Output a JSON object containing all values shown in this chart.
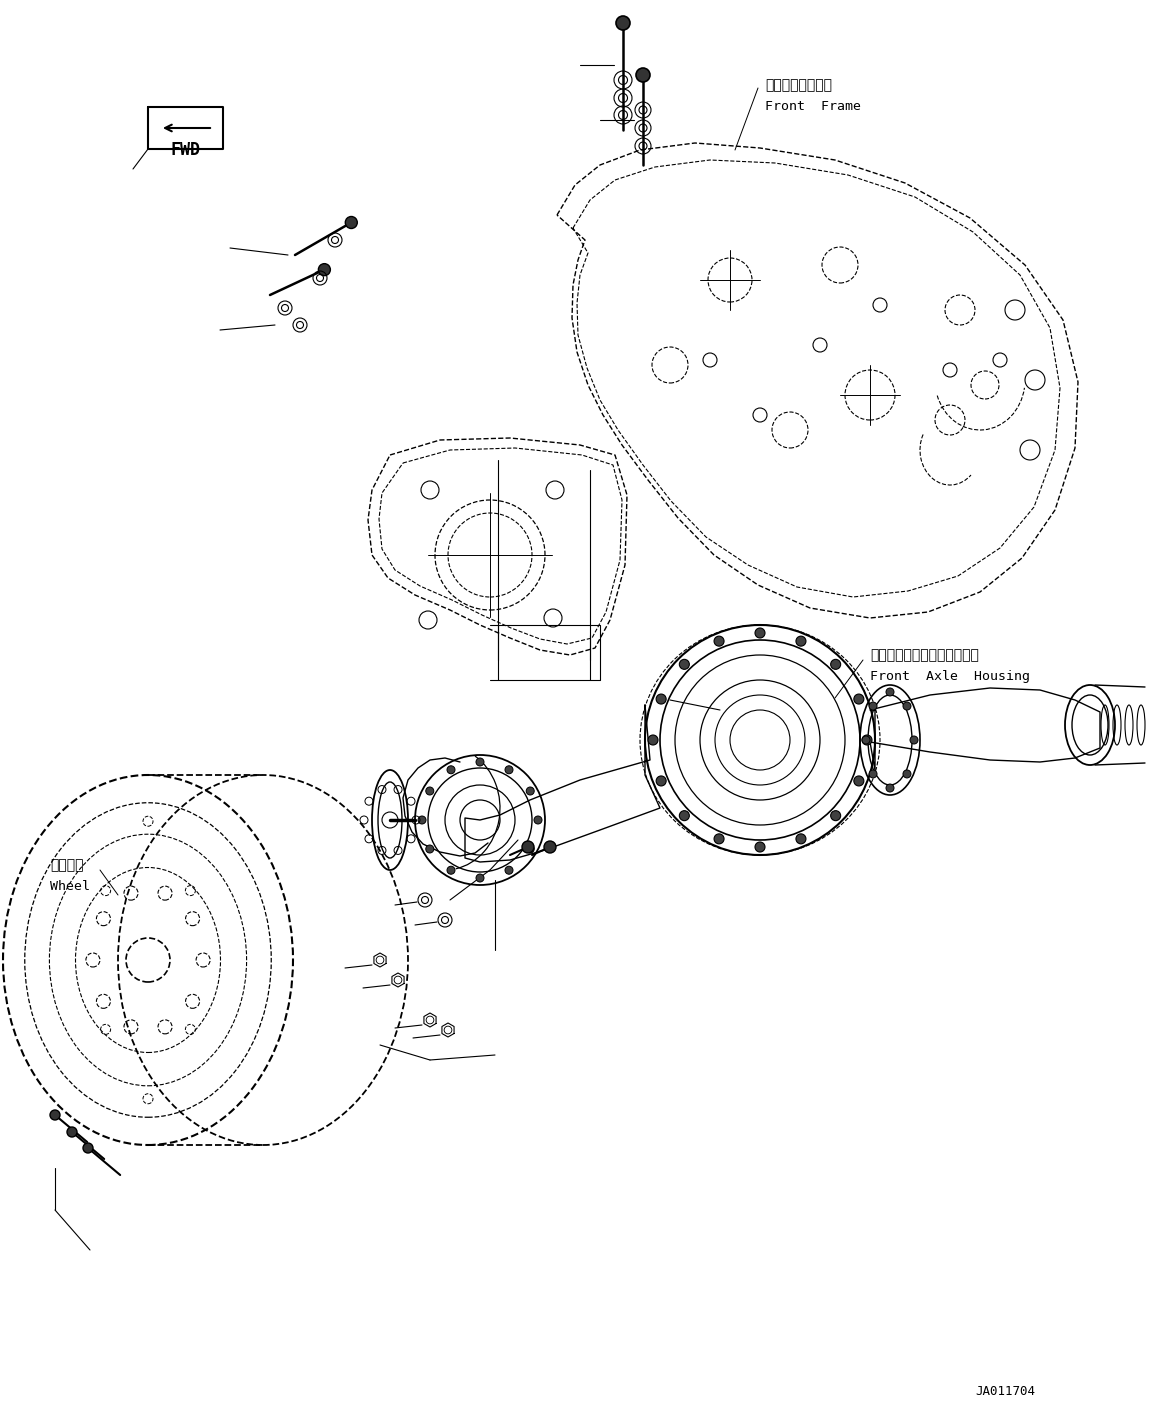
{
  "bg_color": "#ffffff",
  "line_color": "#000000",
  "fig_width": 11.63,
  "fig_height": 14.12,
  "dpi": 100,
  "label_front_frame_jp": "フロントフレーム",
  "label_front_frame_en": "Front  Frame",
  "label_front_axle_jp": "フロントアクスルハウジング",
  "label_front_axle_en": "Front  Axle  Housing",
  "label_wheel_jp": "ホイール",
  "label_wheel_en": "Wheel",
  "label_fwd": "FWD",
  "label_code": "JA011704",
  "font_size_label": 9.5,
  "font_size_code": 9
}
